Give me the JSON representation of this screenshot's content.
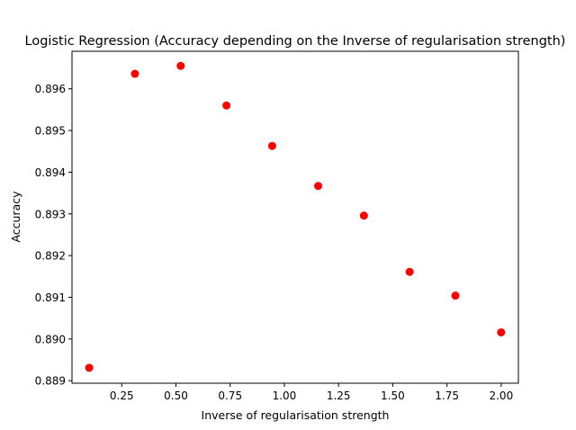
{
  "chart_data": {
    "type": "scatter",
    "title": "Logistic Regression (Accuracy depending on the Inverse of regularisation strength)",
    "xlabel": "Inverse of regularisation strength",
    "ylabel": "Accuracy",
    "xlim": [
      0.0205,
      2.0795
    ],
    "ylim": [
      0.88894,
      0.8969
    ],
    "xticks": [
      0.25,
      0.5,
      0.75,
      1.0,
      1.25,
      1.5,
      1.75,
      2.0
    ],
    "xtick_labels": [
      "0.25",
      "0.50",
      "0.75",
      "1.00",
      "1.25",
      "1.50",
      "1.75",
      "2.00"
    ],
    "yticks": [
      0.889,
      0.89,
      0.891,
      0.892,
      0.893,
      0.894,
      0.895,
      0.896
    ],
    "ytick_labels": [
      "0.889",
      "0.890",
      "0.891",
      "0.892",
      "0.893",
      "0.894",
      "0.895",
      "0.896"
    ],
    "grid": false,
    "marker_color": "#ff0000",
    "series": [
      {
        "x": [
          0.1,
          0.311,
          0.522,
          0.733,
          0.944,
          1.156,
          1.367,
          1.578,
          1.789,
          2.0
        ],
        "y": [
          0.88931,
          0.89636,
          0.89655,
          0.8956,
          0.89463,
          0.89367,
          0.89296,
          0.89161,
          0.89104,
          0.89016
        ]
      }
    ]
  }
}
